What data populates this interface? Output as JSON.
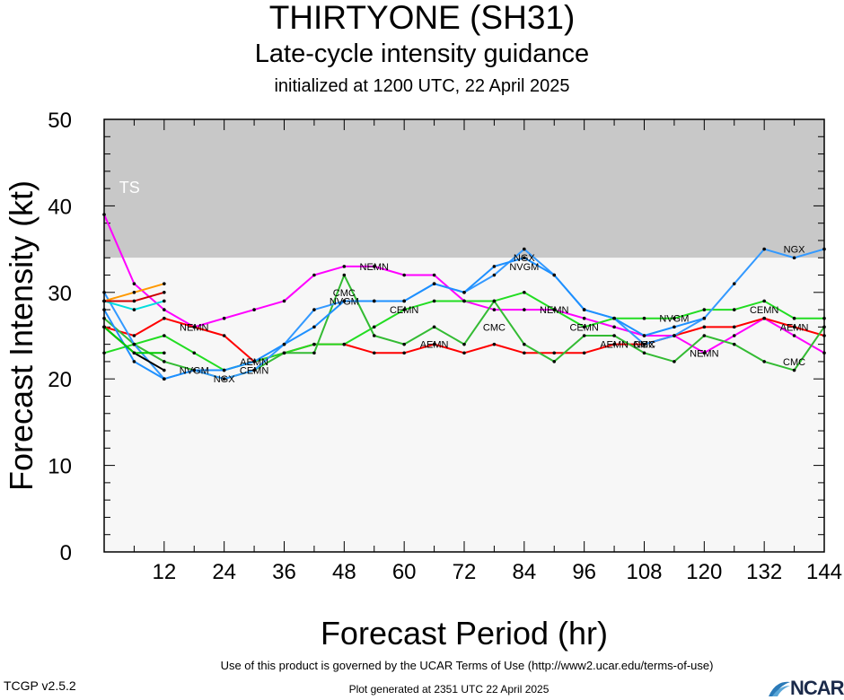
{
  "header": {
    "title": "THIRTYONE (SH31)",
    "subtitle": "Late-cycle intensity guidance",
    "initialized": "initialized at 1200 UTC, 22 April 2025"
  },
  "footer": {
    "terms": "Use of this product is governed by the UCAR Terms of Use (http://www2.ucar.edu/terms-of-use)",
    "generated": "Plot generated at 2351 UTC   22 April 2025",
    "version": "TCGP v2.5.2",
    "logo": "NCAR"
  },
  "chart_data": {
    "type": "line",
    "title": "THIRTYONE (SH31)",
    "xlabel": "Forecast Period (hr)",
    "ylabel": "Forecast Intensity (kt)",
    "xlim": [
      0,
      144
    ],
    "ylim": [
      0,
      50
    ],
    "xticks": [
      12,
      24,
      36,
      48,
      60,
      72,
      84,
      96,
      108,
      120,
      132,
      144
    ],
    "yticks": [
      0,
      10,
      20,
      30,
      40,
      50
    ],
    "bands": [
      {
        "label": "TS",
        "from": 34,
        "to": 50,
        "color": "#c8c8c8"
      },
      {
        "label": "",
        "from": 0,
        "to": 34,
        "color": "#f7f7f7"
      }
    ],
    "series": [
      {
        "name": "NEMN",
        "color": "#ff00ff",
        "points": [
          [
            0,
            39
          ],
          [
            6,
            31
          ],
          [
            12,
            28
          ],
          [
            18,
            26
          ],
          [
            24,
            27
          ],
          [
            30,
            28
          ],
          [
            36,
            29
          ],
          [
            42,
            32
          ],
          [
            48,
            33
          ],
          [
            54,
            33
          ],
          [
            60,
            32
          ],
          [
            66,
            32
          ],
          [
            72,
            29
          ],
          [
            78,
            28
          ],
          [
            84,
            28
          ],
          [
            90,
            28
          ],
          [
            96,
            27
          ],
          [
            102,
            26
          ],
          [
            108,
            25
          ],
          [
            114,
            25
          ],
          [
            120,
            23
          ],
          [
            126,
            25
          ],
          [
            132,
            27
          ],
          [
            138,
            25
          ],
          [
            144,
            23
          ]
        ],
        "labels": [
          [
            18,
            26
          ],
          [
            54,
            33
          ],
          [
            90,
            28
          ],
          [
            120,
            23
          ]
        ]
      },
      {
        "name": "AEMN",
        "color": "#ff0000",
        "points": [
          [
            0,
            26
          ],
          [
            6,
            25
          ],
          [
            12,
            27
          ],
          [
            18,
            26
          ],
          [
            24,
            25
          ],
          [
            30,
            22
          ],
          [
            36,
            23
          ],
          [
            42,
            24
          ],
          [
            48,
            24
          ],
          [
            54,
            23
          ],
          [
            60,
            23
          ],
          [
            66,
            24
          ],
          [
            72,
            23
          ],
          [
            78,
            24
          ],
          [
            84,
            23
          ],
          [
            90,
            23
          ],
          [
            96,
            23
          ],
          [
            102,
            24
          ],
          [
            108,
            24
          ],
          [
            114,
            25
          ],
          [
            120,
            26
          ],
          [
            126,
            26
          ],
          [
            132,
            27
          ],
          [
            138,
            26
          ],
          [
            144,
            25
          ]
        ],
        "labels": [
          [
            30,
            22
          ],
          [
            66,
            24
          ],
          [
            102,
            24
          ],
          [
            138,
            26
          ]
        ]
      },
      {
        "name": "CEMN",
        "color": "#22dd22",
        "points": [
          [
            0,
            23
          ],
          [
            6,
            24
          ],
          [
            12,
            25
          ],
          [
            18,
            23
          ],
          [
            24,
            21
          ],
          [
            30,
            22
          ],
          [
            36,
            23
          ],
          [
            42,
            24
          ],
          [
            48,
            24
          ],
          [
            54,
            26
          ],
          [
            60,
            28
          ],
          [
            66,
            29
          ],
          [
            72,
            29
          ],
          [
            78,
            29
          ],
          [
            84,
            30
          ],
          [
            90,
            28
          ],
          [
            96,
            26
          ],
          [
            102,
            27
          ],
          [
            108,
            27
          ],
          [
            114,
            27
          ],
          [
            120,
            28
          ],
          [
            126,
            28
          ],
          [
            132,
            29
          ],
          [
            138,
            27
          ],
          [
            144,
            27
          ]
        ],
        "labels": [
          [
            30,
            21
          ],
          [
            60,
            28
          ],
          [
            96,
            26
          ],
          [
            132,
            28
          ]
        ]
      },
      {
        "name": "CMC",
        "color": "#33bb33",
        "points": [
          [
            0,
            27
          ],
          [
            6,
            24
          ],
          [
            12,
            22
          ],
          [
            18,
            21
          ],
          [
            24,
            20
          ],
          [
            30,
            21
          ],
          [
            36,
            23
          ],
          [
            42,
            23
          ],
          [
            48,
            32
          ],
          [
            54,
            25
          ],
          [
            60,
            24
          ],
          [
            66,
            26
          ],
          [
            72,
            24
          ],
          [
            78,
            29
          ],
          [
            84,
            24
          ],
          [
            90,
            22
          ],
          [
            96,
            25
          ],
          [
            102,
            25
          ],
          [
            108,
            23
          ],
          [
            114,
            22
          ],
          [
            120,
            25
          ],
          [
            126,
            24
          ],
          [
            132,
            22
          ],
          [
            138,
            21
          ],
          [
            144,
            26
          ]
        ],
        "labels": [
          [
            48,
            30
          ],
          [
            78,
            26
          ],
          [
            108,
            24
          ],
          [
            138,
            22
          ]
        ]
      },
      {
        "name": "NGX",
        "color": "#3399ff",
        "points": [
          [
            0,
            30
          ],
          [
            6,
            24
          ],
          [
            12,
            20
          ],
          [
            18,
            21
          ],
          [
            24,
            20
          ],
          [
            30,
            21
          ],
          [
            36,
            24
          ],
          [
            42,
            28
          ],
          [
            48,
            29
          ],
          [
            54,
            29
          ],
          [
            60,
            29
          ],
          [
            66,
            31
          ],
          [
            72,
            30
          ],
          [
            78,
            32
          ],
          [
            84,
            35
          ],
          [
            90,
            32
          ],
          [
            96,
            28
          ],
          [
            102,
            27
          ],
          [
            108,
            24
          ],
          [
            114,
            25
          ],
          [
            120,
            27
          ],
          [
            126,
            31
          ],
          [
            132,
            35
          ],
          [
            138,
            34
          ],
          [
            144,
            35
          ]
        ],
        "labels": [
          [
            24,
            20
          ],
          [
            84,
            34
          ],
          [
            108,
            24
          ],
          [
            138,
            35
          ]
        ]
      },
      {
        "name": "NVGM",
        "color": "#1e90ff",
        "points": [
          [
            0,
            28
          ],
          [
            6,
            22
          ],
          [
            12,
            20
          ],
          [
            18,
            21
          ],
          [
            24,
            21
          ],
          [
            30,
            22
          ],
          [
            36,
            24
          ],
          [
            42,
            26
          ],
          [
            48,
            29
          ],
          [
            54,
            29
          ],
          [
            60,
            29
          ],
          [
            66,
            31
          ],
          [
            72,
            30
          ],
          [
            78,
            33
          ],
          [
            84,
            34
          ],
          [
            90,
            32
          ],
          [
            96,
            28
          ],
          [
            102,
            27
          ],
          [
            108,
            25
          ],
          [
            114,
            26
          ],
          [
            120,
            27
          ]
        ],
        "labels": [
          [
            18,
            21
          ],
          [
            48,
            29
          ],
          [
            84,
            33
          ],
          [
            114,
            27
          ]
        ]
      },
      {
        "name": "",
        "color": "#00dddd",
        "points": [
          [
            0,
            29
          ],
          [
            6,
            28
          ],
          [
            12,
            29
          ]
        ],
        "labels": []
      },
      {
        "name": "",
        "color": "#ff9900",
        "points": [
          [
            0,
            29
          ],
          [
            6,
            30
          ],
          [
            12,
            31
          ]
        ],
        "labels": []
      },
      {
        "name": "",
        "color": "#000000",
        "points": [
          [
            0,
            26
          ],
          [
            6,
            23
          ],
          [
            12,
            21
          ]
        ],
        "labels": []
      },
      {
        "name": "",
        "color": "#cc0000",
        "points": [
          [
            0,
            29
          ],
          [
            6,
            29
          ],
          [
            12,
            30
          ]
        ],
        "labels": []
      },
      {
        "name": "",
        "color": "#00cc00",
        "points": [
          [
            0,
            26
          ],
          [
            6,
            23
          ],
          [
            12,
            23
          ]
        ],
        "labels": []
      }
    ]
  }
}
